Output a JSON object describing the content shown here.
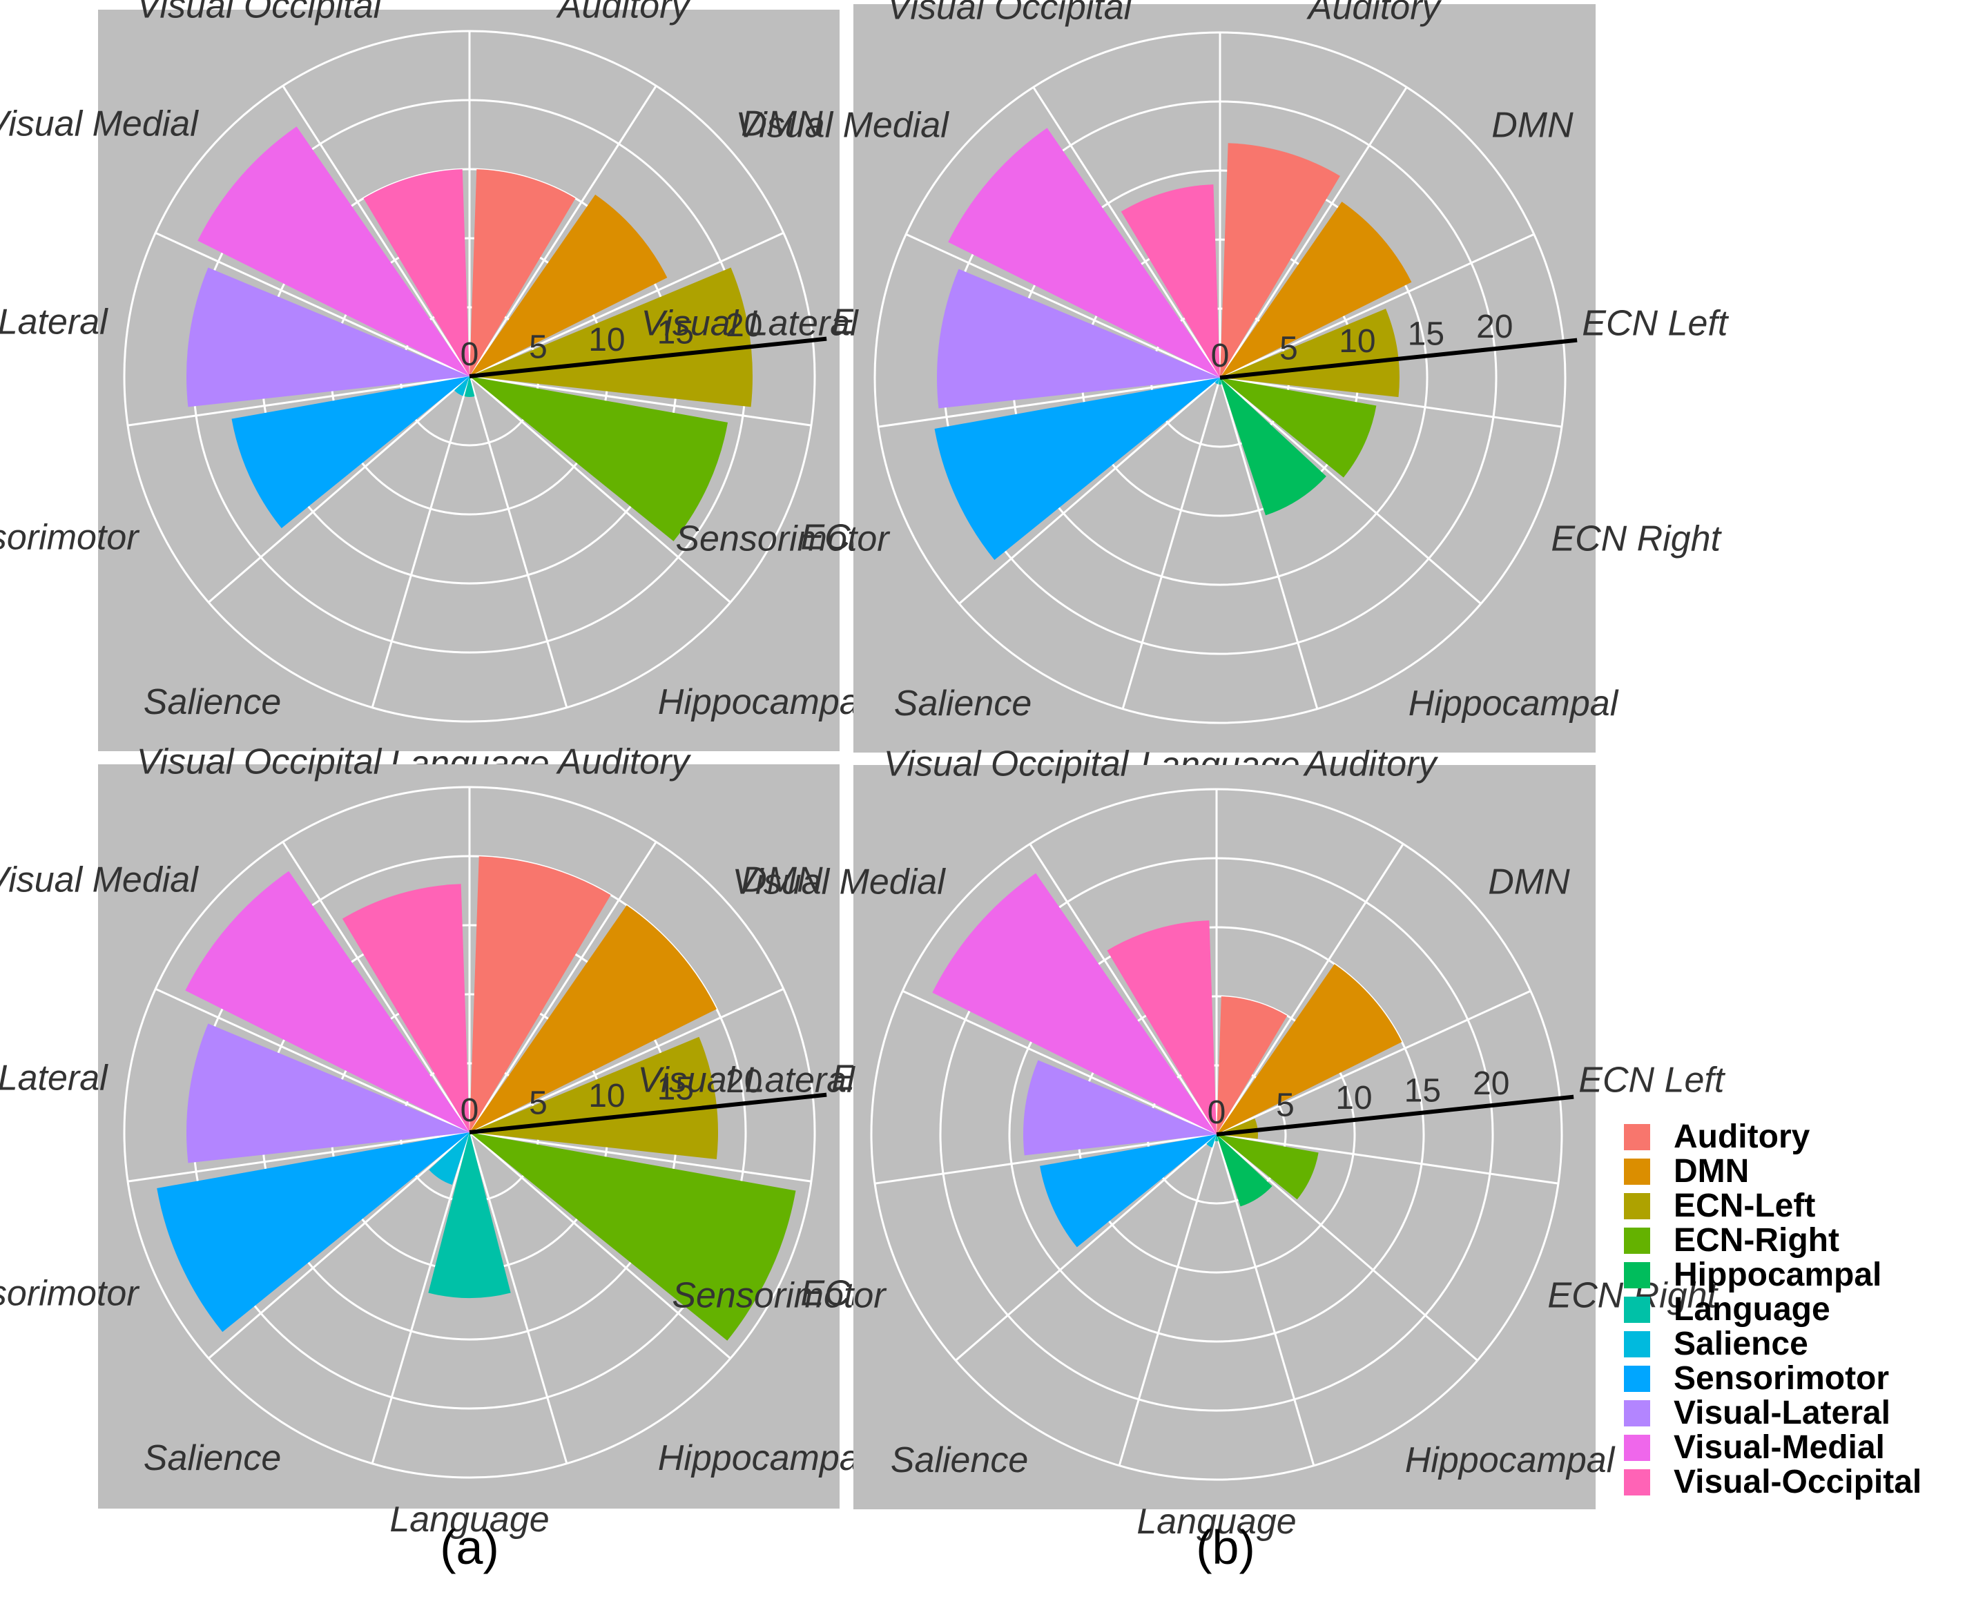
{
  "captions": [
    "(a)",
    "(b)"
  ],
  "legend": {
    "title": "",
    "items": [
      {
        "label": "Auditory",
        "color": "#F8766D"
      },
      {
        "label": "DMN",
        "color": "#DB8E00"
      },
      {
        "label": "ECN-Left",
        "color": "#AEA200"
      },
      {
        "label": "ECN-Right",
        "color": "#64B200"
      },
      {
        "label": "Hippocampal",
        "color": "#00BD5C"
      },
      {
        "label": "Language",
        "color": "#00C1A7"
      },
      {
        "label": "Salience",
        "color": "#00BADE"
      },
      {
        "label": "Sensorimotor",
        "color": "#00A6FF"
      },
      {
        "label": "Visual-Lateral",
        "color": "#B385FF"
      },
      {
        "label": "Visual-Medial",
        "color": "#EF67EB"
      },
      {
        "label": "Visual-Occipital",
        "color": "#FF63B6"
      }
    ]
  },
  "chart_data": [
    {
      "type": "bar",
      "coord": "polar",
      "panel": "top-left",
      "categories": [
        "Auditory",
        "DMN",
        "ECN Left",
        "ECN Right",
        "Hippocampal",
        "Language",
        "Salience",
        "Sensorimotor",
        "Visual Lateral",
        "Visual Medial",
        "Visual Occipital"
      ],
      "values": [
        15,
        16,
        20.5,
        19,
        0,
        1.5,
        1.5,
        17.5,
        20.5,
        22,
        15
      ],
      "radial_ticks": [
        "0",
        "5",
        "10",
        "15",
        "20"
      ],
      "rlim": [
        0,
        25
      ]
    },
    {
      "type": "bar",
      "coord": "polar",
      "panel": "top-right",
      "categories": [
        "Auditory",
        "DMN",
        "ECN Left",
        "ECN Right",
        "Hippocampal",
        "Language",
        "Salience",
        "Sensorimotor",
        "Visual Lateral",
        "Visual Medial",
        "Visual Occipital"
      ],
      "values": [
        17,
        15.5,
        13,
        11.5,
        10.5,
        0.5,
        0.5,
        21,
        20.5,
        22,
        14
      ],
      "radial_ticks": [
        "0",
        "5",
        "10",
        "15",
        "20"
      ],
      "rlim": [
        0,
        25
      ]
    },
    {
      "type": "bar",
      "coord": "polar",
      "panel": "bottom-left",
      "categories": [
        "Auditory",
        "DMN",
        "ECN Left",
        "ECN Right",
        "Hippocampal",
        "Language",
        "Salience",
        "Sensorimotor",
        "Visual Lateral",
        "Visual Medial",
        "Visual Occipital"
      ],
      "values": [
        20,
        20,
        18,
        24,
        0,
        12,
        4,
        23,
        20.5,
        23,
        18
      ],
      "radial_ticks": [
        "0",
        "5",
        "10",
        "15",
        "20"
      ],
      "rlim": [
        0,
        25
      ]
    },
    {
      "type": "bar",
      "coord": "polar",
      "panel": "bottom-right",
      "categories": [
        "Auditory",
        "DMN",
        "ECN Left",
        "ECN Right",
        "Hippocampal",
        "Language",
        "Salience",
        "Sensorimotor",
        "Visual Lateral",
        "Visual Medial",
        "Visual Occipital"
      ],
      "values": [
        10,
        15,
        3,
        7.5,
        5.5,
        0.5,
        1,
        13,
        14,
        23,
        15.5
      ],
      "radial_ticks": [
        "0",
        "5",
        "10",
        "15",
        "20"
      ],
      "rlim": [
        0,
        25
      ]
    }
  ]
}
